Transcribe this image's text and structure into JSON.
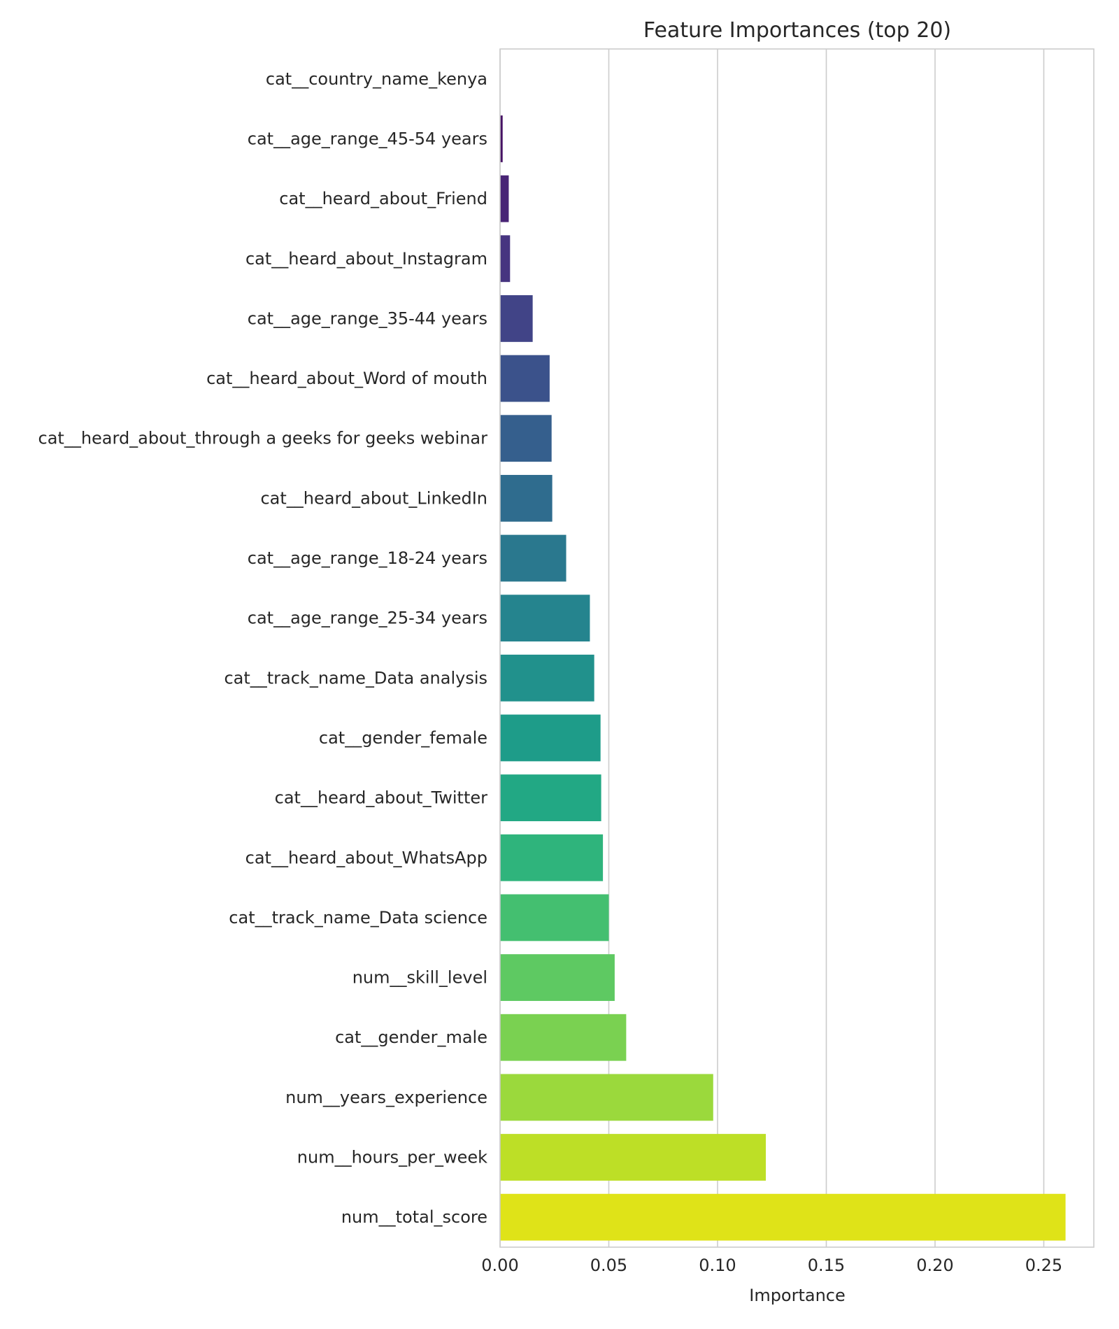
{
  "chart_data": {
    "type": "bar",
    "orientation": "horizontal",
    "title": "Feature Importances (top 20)",
    "xlabel": "Importance",
    "ylabel": "",
    "xlim": [
      0,
      0.273
    ],
    "xticks": [
      0,
      0.05,
      0.1,
      0.15,
      0.2,
      0.25
    ],
    "xtick_labels": [
      "0.00",
      "0.05",
      "0.10",
      "0.15",
      "0.20",
      "0.25"
    ],
    "grid": "vertical",
    "legend": "none",
    "categories": [
      "cat__country_name_kenya",
      "cat__age_range_45-54 years",
      "cat__heard_about_Friend",
      "cat__heard_about_Instagram",
      "cat__age_range_35-44 years",
      "cat__heard_about_Word of mouth",
      "cat__heard_about_through a geeks for geeks webinar",
      "cat__heard_about_LinkedIn",
      "cat__age_range_18-24 years",
      "cat__age_range_25-34 years",
      "cat__track_name_Data analysis",
      "cat__gender_female",
      "cat__heard_about_Twitter",
      "cat__heard_about_WhatsApp",
      "cat__track_name_Data science",
      "num__skill_level",
      "cat__gender_male",
      "num__years_experience",
      "num__hours_per_week",
      "num__total_score"
    ],
    "values": [
      0.0001,
      0.0012,
      0.004,
      0.0046,
      0.015,
      0.0228,
      0.0237,
      0.024,
      0.0304,
      0.0413,
      0.0433,
      0.0462,
      0.0465,
      0.0473,
      0.05,
      0.0527,
      0.058,
      0.098,
      0.1222,
      0.26
    ],
    "colors": [
      "#440154",
      "#471365",
      "#482475",
      "#463480",
      "#414487",
      "#3b528b",
      "#355f8d",
      "#2f6c8e",
      "#2a788e",
      "#25848e",
      "#21918c",
      "#1e9c89",
      "#22a884",
      "#2fb47c",
      "#44bf70",
      "#5ec962",
      "#7ad151",
      "#9bd93c",
      "#bddf26",
      "#dfe318"
    ]
  }
}
